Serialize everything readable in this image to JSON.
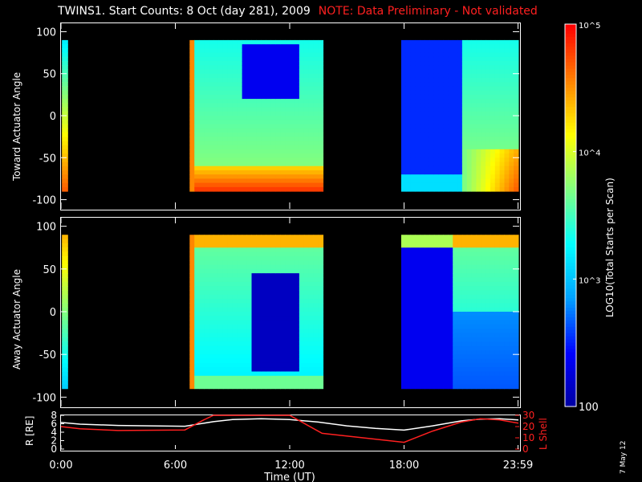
{
  "header": {
    "title": "TWINS1. Start Counts:  8 Oct (day 281), 2009",
    "note": "NOTE: Data Preliminary - Not validated"
  },
  "footer": {
    "date_stamp": "7 May 12"
  },
  "colorbar": {
    "label": "LOG10(Total Starts per Scan)",
    "ticks": [
      "10^5",
      "10^4",
      "10^3",
      "100"
    ],
    "tick_values": [
      100000,
      10000,
      1000,
      100
    ],
    "scale": "log",
    "colormap": "rainbow",
    "colors": [
      "#0000a0",
      "#0000ff",
      "#00a0ff",
      "#00ffff",
      "#80ff80",
      "#ffff00",
      "#ff8000",
      "#ff0000"
    ]
  },
  "chart_data": [
    {
      "type": "heatmap",
      "ylabel": "Toward Actuator Angle",
      "ylim": [
        -110,
        110
      ],
      "yticks": [
        100,
        50,
        0,
        -50,
        -100
      ],
      "xlim": [
        0,
        24
      ],
      "data_segments_hours": [
        [
          0.05,
          0.35
        ],
        [
          6.75,
          13.75
        ],
        [
          17.85,
          24
        ]
      ],
      "intensity": {
        "low_region": "blue minimum near 10:00-12:00 at 40-80 deg; deep blue band 18:00-21:00",
        "high_region": "orange/red near -80 deg at 0:00, 6:45, and 22:00-24:00"
      }
    },
    {
      "type": "heatmap",
      "ylabel": "Away Actuator Angle",
      "ylim": [
        -110,
        110
      ],
      "yticks": [
        100,
        50,
        0,
        -50,
        -100
      ],
      "xlim": [
        0,
        24
      ],
      "data_segments_hours": [
        [
          0.05,
          0.35
        ],
        [
          6.75,
          13.75
        ],
        [
          17.85,
          24
        ]
      ],
      "intensity": {
        "low_region": "deep blue 10:00-12:30 from -70 to 45 deg; dark blue 18:00-21:00",
        "high_region": "orange/red near +90 deg and at 6:45"
      }
    },
    {
      "type": "line",
      "xlabel": "Time (UT)",
      "xticks": [
        "0:00",
        "6:00",
        "12:00",
        "18:00",
        "23:59"
      ],
      "xtick_hours": [
        0,
        6,
        12,
        18,
        23.98
      ],
      "left_axis": {
        "label": "R [RE]",
        "ylim": [
          0,
          8
        ],
        "ticks": [
          0,
          2,
          4,
          6,
          8
        ]
      },
      "right_axis": {
        "label": "L Shell",
        "ylim": [
          0,
          30
        ],
        "ticks": [
          0,
          10,
          20,
          30
        ]
      },
      "series": [
        {
          "name": "R [RE]",
          "color": "#ffffff",
          "axis": "left",
          "x": [
            0,
            1,
            3,
            6.5,
            8,
            9,
            10.5,
            12,
            13.5,
            15,
            16.5,
            18,
            19.5,
            21,
            22,
            23,
            24
          ],
          "y": [
            6.3,
            5.9,
            5.6,
            5.4,
            6.5,
            7.0,
            7.2,
            7.0,
            6.4,
            5.5,
            4.9,
            4.5,
            5.5,
            6.7,
            7.1,
            7.2,
            6.9
          ]
        },
        {
          "name": "L Shell",
          "color": "#ff2020",
          "axis": "right",
          "x": [
            0,
            1,
            3,
            6.5,
            7.5,
            8,
            12,
            13.7,
            18,
            19.5,
            21,
            22,
            23,
            24
          ],
          "y": [
            20,
            18,
            16.5,
            17,
            26,
            31,
            31,
            14,
            6,
            16,
            24,
            27,
            26,
            23
          ]
        }
      ]
    }
  ]
}
